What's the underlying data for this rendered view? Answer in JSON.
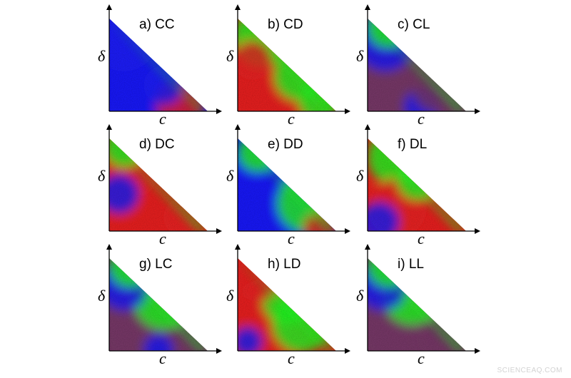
{
  "chart_data": [
    {
      "type": "heatmap",
      "title": "a) CC",
      "xlabel": "c",
      "ylabel": "δ",
      "regions": [
        {
          "name": "blue",
          "color": "#1a1aff"
        },
        {
          "name": "green",
          "color": "#22ff22"
        },
        {
          "name": "red",
          "color": "#ee2020"
        }
      ]
    },
    {
      "type": "heatmap",
      "title": "b) CD",
      "xlabel": "c",
      "ylabel": "δ",
      "regions": [
        {
          "name": "red",
          "color": "#ee2020"
        },
        {
          "name": "green",
          "color": "#22ff22"
        },
        {
          "name": "blue",
          "color": "#1a1aff"
        }
      ]
    },
    {
      "type": "heatmap",
      "title": "c) CL",
      "xlabel": "c",
      "ylabel": "δ",
      "regions": [
        {
          "name": "mixed",
          "color": "#7a3a6a"
        },
        {
          "name": "green",
          "color": "#22ff22"
        },
        {
          "name": "blue",
          "color": "#1a1aff"
        }
      ]
    },
    {
      "type": "heatmap",
      "title": "d) DC",
      "xlabel": "c",
      "ylabel": "δ",
      "regions": [
        {
          "name": "red",
          "color": "#ee2020"
        },
        {
          "name": "green",
          "color": "#22ff22"
        },
        {
          "name": "blue",
          "color": "#1a1aff"
        }
      ]
    },
    {
      "type": "heatmap",
      "title": "e) DD",
      "xlabel": "c",
      "ylabel": "δ",
      "regions": [
        {
          "name": "blue",
          "color": "#1a1aff"
        },
        {
          "name": "green",
          "color": "#22ff22"
        },
        {
          "name": "red",
          "color": "#ee2020"
        }
      ]
    },
    {
      "type": "heatmap",
      "title": "f) DL",
      "xlabel": "c",
      "ylabel": "δ",
      "regions": [
        {
          "name": "red",
          "color": "#ee2020"
        },
        {
          "name": "green",
          "color": "#22ff22"
        },
        {
          "name": "blue",
          "color": "#1a1aff"
        }
      ]
    },
    {
      "type": "heatmap",
      "title": "g) LC",
      "xlabel": "c",
      "ylabel": "δ",
      "regions": [
        {
          "name": "mixed",
          "color": "#7a3a6a"
        },
        {
          "name": "green",
          "color": "#22ff22"
        },
        {
          "name": "blue",
          "color": "#1a1aff"
        }
      ]
    },
    {
      "type": "heatmap",
      "title": "h) LD",
      "xlabel": "c",
      "ylabel": "δ",
      "regions": [
        {
          "name": "red",
          "color": "#ee2020"
        },
        {
          "name": "green",
          "color": "#22ff22"
        },
        {
          "name": "blue",
          "color": "#1a1aff"
        }
      ]
    },
    {
      "type": "heatmap",
      "title": "i) LL",
      "xlabel": "c",
      "ylabel": "δ",
      "regions": [
        {
          "name": "mixed",
          "color": "#7a3a6a"
        },
        {
          "name": "green",
          "color": "#22ff22"
        },
        {
          "name": "blue",
          "color": "#1a1aff"
        }
      ]
    }
  ],
  "watermark": "SCIENCEAQ.COM"
}
